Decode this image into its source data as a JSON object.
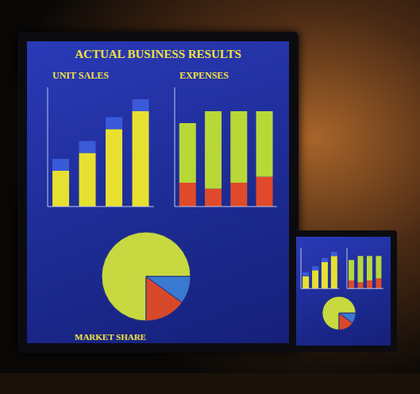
{
  "title": "ACTUAL BUSINESS RESULTS",
  "chart_data": [
    {
      "type": "bar",
      "title": "UNIT SALES",
      "categories": [
        null,
        null,
        null,
        null
      ],
      "series": [
        {
          "color": "#e8e030",
          "values": [
            30,
            45,
            65,
            80
          ]
        },
        {
          "color": "#3a5ad8",
          "values": [
            10,
            10,
            10,
            10
          ]
        }
      ],
      "stacked": true,
      "ylim": [
        0,
        100
      ],
      "tick_labels": false,
      "grid": false
    },
    {
      "type": "bar",
      "title": "EXPENSES",
      "categories": [
        null,
        null,
        null,
        null
      ],
      "series": [
        {
          "color": "#e04a2a",
          "values": [
            20,
            15,
            20,
            25
          ]
        },
        {
          "color": "#b8d838",
          "values": [
            50,
            65,
            60,
            55
          ]
        }
      ],
      "stacked": true,
      "ylim": [
        0,
        100
      ],
      "tick_labels": false,
      "grid": false
    },
    {
      "type": "pie",
      "title": "MARKET SHARE",
      "categories": [
        null,
        null,
        null
      ],
      "values": [
        75,
        15,
        10
      ],
      "colors": [
        "#c8d840",
        "#d8482a",
        "#3a7ad0"
      ]
    }
  ]
}
